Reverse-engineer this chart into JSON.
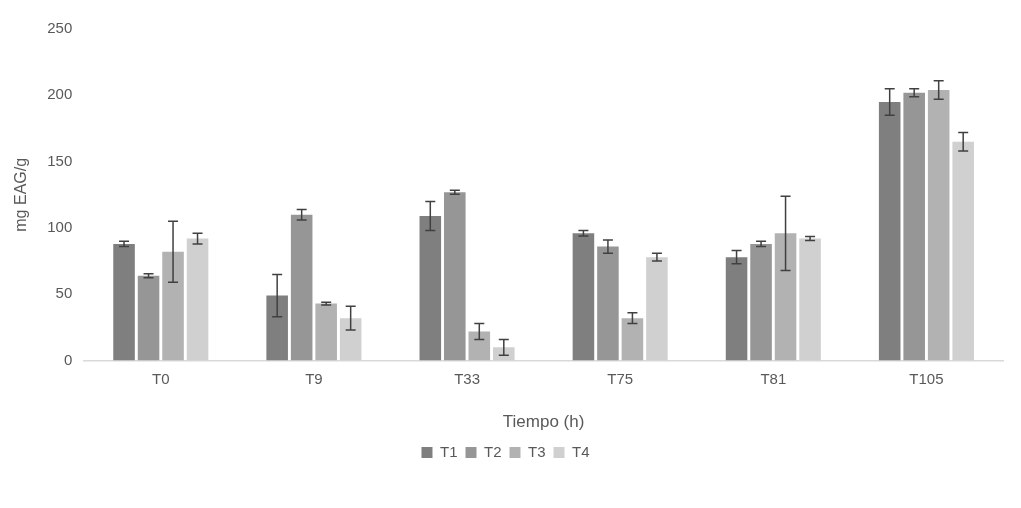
{
  "chart_data": {
    "type": "bar",
    "xlabel": "Tiempo (h)",
    "ylabel": "mg EAG/g",
    "categories": [
      "T0",
      "T9",
      "T33",
      "T75",
      "T81",
      "T105"
    ],
    "series": [
      {
        "name": "T1",
        "color": "#7f7f7f",
        "values": [
          88,
          49,
          109,
          96,
          78,
          195
        ],
        "errors": [
          2,
          16,
          11,
          2,
          5,
          10
        ]
      },
      {
        "name": "T2",
        "color": "#969696",
        "values": [
          64,
          110,
          127,
          86,
          88,
          202
        ],
        "errors": [
          1.5,
          4,
          1.5,
          5,
          2,
          3
        ]
      },
      {
        "name": "T3",
        "color": "#b2b2b2",
        "values": [
          82,
          43,
          22,
          32,
          96,
          204
        ],
        "errors": [
          23,
          1,
          6,
          4,
          28,
          7
        ]
      },
      {
        "name": "T4",
        "color": "#d0d0d0",
        "values": [
          92,
          32,
          10,
          78,
          92,
          165
        ],
        "errors": [
          4,
          9,
          6,
          3,
          1.5,
          7
        ]
      }
    ],
    "ylim": [
      0,
      250
    ],
    "yticks": [
      0,
      50,
      100,
      150,
      200,
      250
    ],
    "grid": false,
    "legend": "bottom"
  }
}
